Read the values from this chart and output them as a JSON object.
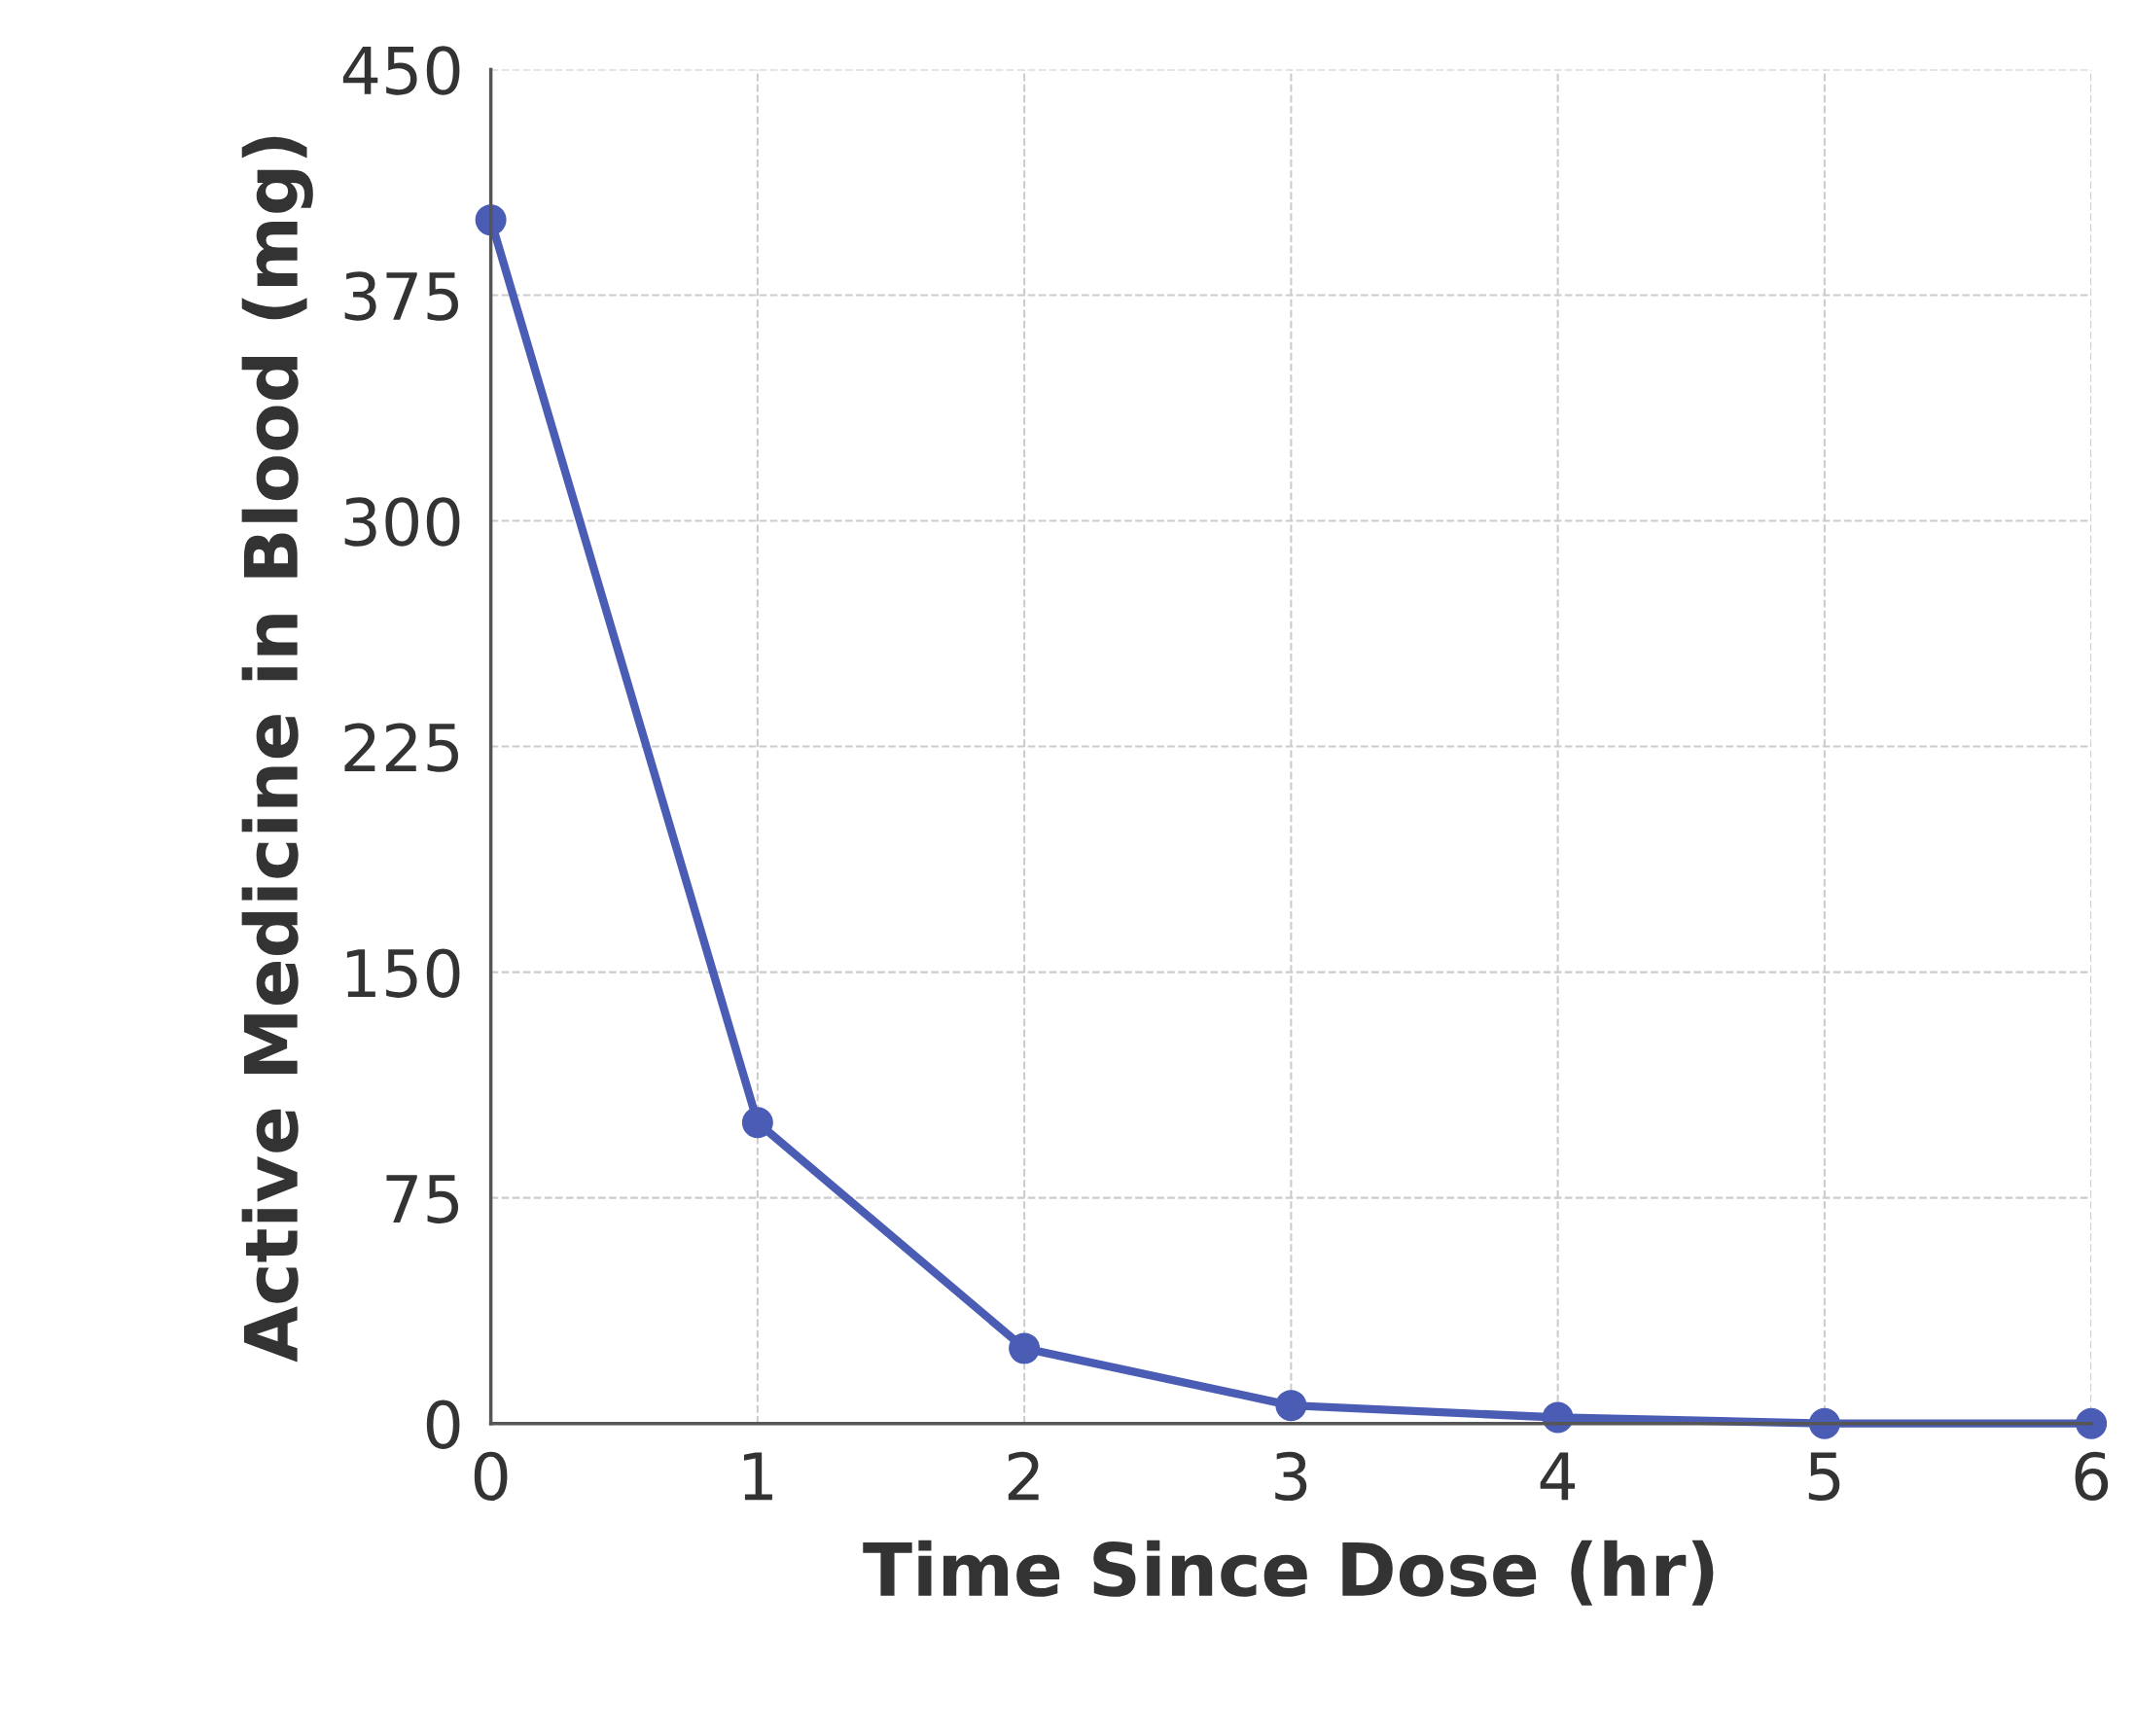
{
  "chart_data": {
    "type": "line",
    "xlabel": "Time Since Dose (hr)",
    "ylabel": "Active Medicine in Blood (mg)",
    "x": [
      0,
      1,
      2,
      3,
      4,
      5,
      6
    ],
    "series": [
      {
        "color": "#4a5cb4",
        "values": [
          400,
          100,
          25,
          6,
          2,
          0,
          0
        ]
      }
    ],
    "xlim": [
      0,
      6
    ],
    "xticks": [
      0,
      1,
      2,
      3,
      4,
      5,
      6
    ],
    "ylim": [
      0,
      450
    ],
    "yticks": [
      0,
      75,
      150,
      225,
      300,
      375,
      450
    ],
    "grid": true,
    "marker": "circle",
    "line_style": "solid",
    "legend": false
  }
}
